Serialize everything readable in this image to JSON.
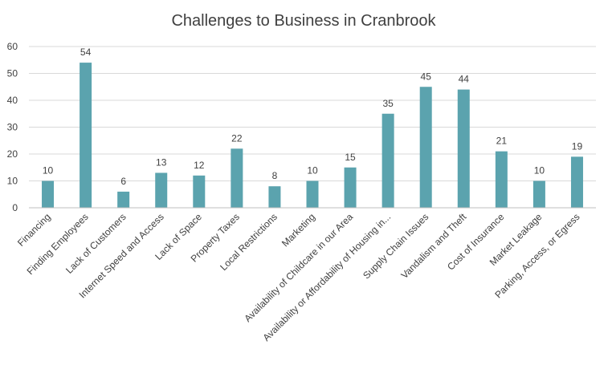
{
  "chart_data": {
    "type": "bar",
    "title": "Challenges to Business in Cranbrook",
    "xlabel": "",
    "ylabel": "",
    "ylim": [
      0,
      60
    ],
    "yticks": [
      0,
      10,
      20,
      30,
      40,
      50,
      60
    ],
    "grid": true,
    "legend": "none",
    "bar_color": "#5BA3AE",
    "categories": [
      "Financing",
      "Finding Employees",
      "Lack of Customers",
      "Internet Speed and Access",
      "Lack of Space",
      "Property Taxes",
      "Local Restrictions",
      "Marketing",
      "Availability of Childcare in our Area",
      "Availability or Affordability of Housing in...",
      "Supply Chain Issues",
      "Vandalism and Theft",
      "Cost of Insurance",
      "Market Leakage",
      "Parking, Access, or Egress"
    ],
    "values": [
      10,
      54,
      6,
      13,
      12,
      22,
      8,
      10,
      15,
      35,
      45,
      44,
      21,
      10,
      19
    ]
  }
}
